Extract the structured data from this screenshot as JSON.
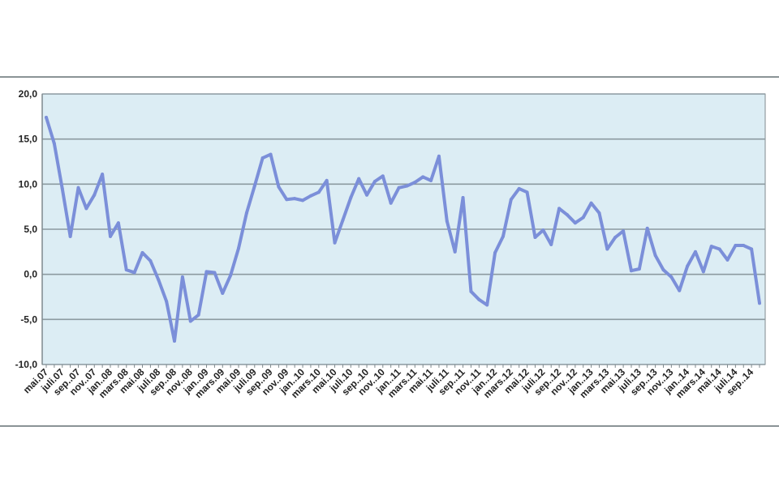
{
  "colors": {
    "plot_background": "#dcedf4",
    "line": "#7b8fd9",
    "grid": "#8c9aa0",
    "frame": "#7f8a8e"
  },
  "chart_data": {
    "type": "line",
    "title": "",
    "xlabel": "",
    "ylabel": "",
    "ylim": [
      -10,
      20
    ],
    "y_ticks": [
      "20,0",
      "15,0",
      "10,0",
      "5,0",
      "0,0",
      "-5,0",
      "-10,0"
    ],
    "y_tick_values": [
      20,
      15,
      10,
      5,
      0,
      -5,
      -10
    ],
    "grid": true,
    "legend": "none",
    "x": [
      "mai.07",
      "juni.07",
      "juli.07",
      "aug.07",
      "sep.07",
      "okt.07",
      "nov.07",
      "des.07",
      "jan.08",
      "feb.08",
      "mars.08",
      "apr.08",
      "mai.08",
      "juni.08",
      "juli.08",
      "aug.08",
      "sep.08",
      "okt.08",
      "nov.08",
      "des.08",
      "jan.09",
      "feb.09",
      "mars.09",
      "apr.09",
      "mai.09",
      "juni.09",
      "juli.09",
      "aug.09",
      "sep.09",
      "okt.09",
      "nov.09",
      "des.09",
      "jan.10",
      "feb.10",
      "mars.10",
      "apr.10",
      "mai.10",
      "juni.10",
      "juli.10",
      "aug.10",
      "sep.10",
      "okt.10",
      "nov.10",
      "des.10",
      "jan.11",
      "feb.11",
      "mars.11",
      "apr.11",
      "mai.11",
      "juni.11",
      "juli.11",
      "aug.11",
      "sep.11",
      "okt.11",
      "nov.11",
      "des.11",
      "jan.12",
      "feb.12",
      "mars.12",
      "apr.12",
      "mai.12",
      "juni.12",
      "juli.12",
      "aug.12",
      "sep.12",
      "okt.12",
      "nov.12",
      "des.12",
      "jan.13",
      "feb.13",
      "mars.13",
      "apr.13",
      "mai.13",
      "juni.13",
      "juli.13",
      "aug.13",
      "sep.13",
      "okt.13",
      "nov.13",
      "des.13",
      "jan.14",
      "feb.14",
      "mars.14",
      "apr.14",
      "mai.14",
      "juni.14",
      "juli.14",
      "aug.14",
      "sep.14",
      "okt.14"
    ],
    "x_tick_labels": [
      "mai.07",
      "juli.07",
      "sep..07",
      "nov..07",
      "jan..08",
      "mars.08",
      "mai.08",
      "juli.08",
      "sep..08",
      "nov..08",
      "jan..09",
      "mars.09",
      "mai.09",
      "juli.09",
      "sep..09",
      "nov..09",
      "jan..10",
      "mars.10",
      "mai.10",
      "juli.10",
      "sep..10",
      "nov..10",
      "jan..11",
      "mars.11",
      "mai.11",
      "juli.11",
      "sep..11",
      "nov..11",
      "jan..12",
      "mars.12",
      "mai.12",
      "juli.12",
      "sep..12",
      "nov..12",
      "jan..13",
      "mars.13",
      "mai.13",
      "juli.13",
      "sep..13",
      "nov..13",
      "jan..14",
      "mars.14",
      "mai.14",
      "juli.14",
      "sep..14"
    ],
    "series": [
      {
        "values": [
          17.4,
          14.5,
          9.5,
          4.2,
          9.6,
          7.3,
          8.8,
          11.1,
          4.2,
          5.7,
          0.5,
          0.2,
          2.4,
          1.5,
          -0.6,
          -3.0,
          -7.4,
          -0.3,
          -5.2,
          -4.5,
          0.3,
          0.2,
          -2.1,
          -0.1,
          2.9,
          6.8,
          9.8,
          12.9,
          13.3,
          9.7,
          8.3,
          8.4,
          8.2,
          8.7,
          9.1,
          10.4,
          3.5,
          6.0,
          8.5,
          10.6,
          8.8,
          10.3,
          10.9,
          7.9,
          9.6,
          9.8,
          10.2,
          10.8,
          10.4,
          13.1,
          5.9,
          2.5,
          8.5,
          -1.9,
          -2.8,
          -3.4,
          2.4,
          4.2,
          8.3,
          9.5,
          9.1,
          4.1,
          4.9,
          3.3,
          7.3,
          6.6,
          5.7,
          6.3,
          7.9,
          6.8,
          2.8,
          4.1,
          4.8,
          0.4,
          0.6,
          5.1,
          2.1,
          0.5,
          -0.3,
          -1.8,
          0.9,
          2.5,
          0.3,
          3.1,
          2.8,
          1.6,
          3.2,
          3.2,
          2.8,
          -3.2
        ]
      }
    ]
  }
}
